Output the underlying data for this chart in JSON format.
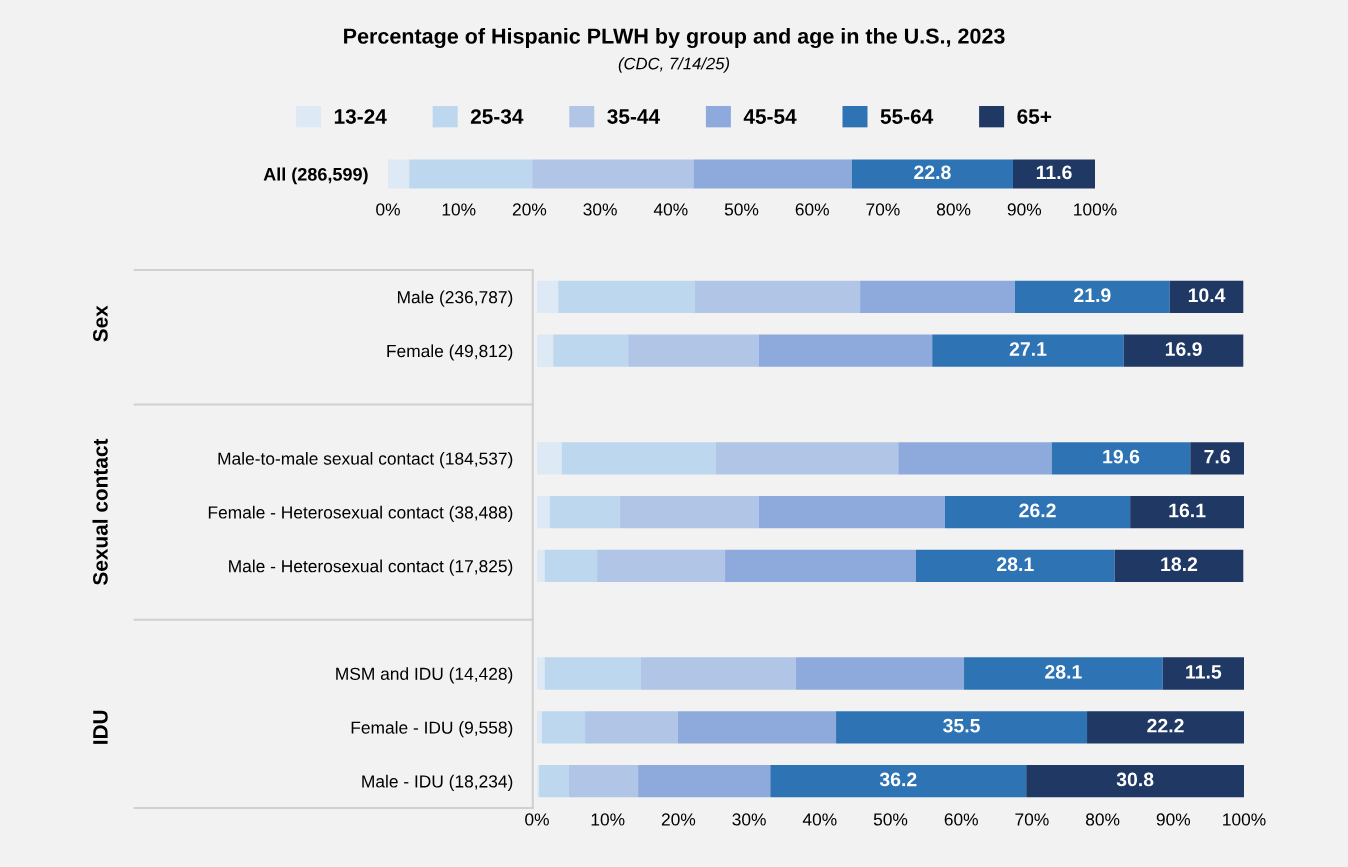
{
  "chart_data": [
    {
      "type": "bar",
      "orientation": "horizontal",
      "stacked": true,
      "title": "Percentage of Hispanic PLWH by group and age in the U.S., 2023",
      "subtitle": "(CDC, 7/14/25)",
      "legend": "top",
      "grid": false,
      "categories": [
        "All (286,599)"
      ],
      "xlim": [
        0,
        100
      ],
      "xticks": [
        {
          "value": 0,
          "label": "0%"
        },
        {
          "value": 10,
          "label": "10%"
        },
        {
          "value": 20,
          "label": "20%"
        },
        {
          "value": 30,
          "label": "30%"
        },
        {
          "value": 40,
          "label": "40%"
        },
        {
          "value": 50,
          "label": "50%"
        },
        {
          "value": 60,
          "label": "60%"
        },
        {
          "value": 70,
          "label": "70%"
        },
        {
          "value": 80,
          "label": "80%"
        },
        {
          "value": 90,
          "label": "90%"
        },
        {
          "value": 100,
          "label": "100%"
        }
      ],
      "series": [
        {
          "name": "13-24",
          "color": "#dde9f5",
          "values": [
            3.0
          ]
        },
        {
          "name": "25-34",
          "color": "#bcd7ee",
          "values": [
            17.4
          ]
        },
        {
          "name": "35-44",
          "color": "#b1c5e6",
          "values": [
            22.8
          ]
        },
        {
          "name": "45-54",
          "color": "#8eaadc",
          "values": [
            22.4
          ]
        },
        {
          "name": "55-64",
          "color": "#2e74b5",
          "values": [
            22.8
          ],
          "value_labels": [
            "22.8"
          ]
        },
        {
          "name": "65+",
          "color": "#1f3864",
          "values": [
            11.6
          ],
          "value_labels": [
            "11.6"
          ]
        }
      ]
    },
    {
      "type": "bar",
      "orientation": "horizontal",
      "stacked": true,
      "grid": false,
      "categories": [
        "Male (236,787)",
        "Female (49,812)",
        null,
        "Male-to-male sexual contact (184,537)",
        "Female - Heterosexual contact (38,488)",
        "Male - Heterosexual contact (17,825)",
        null,
        "MSM and IDU (14,428)",
        "Female - IDU (9,558)",
        "Male - IDU (18,234)"
      ],
      "annotations": [
        "Sex",
        "Sexual contact",
        "IDU"
      ],
      "xlim": [
        0,
        100
      ],
      "xticks": [
        {
          "value": 0,
          "label": "0%"
        },
        {
          "value": 10,
          "label": "10%"
        },
        {
          "value": 20,
          "label": "20%"
        },
        {
          "value": 30,
          "label": "30%"
        },
        {
          "value": 40,
          "label": "40%"
        },
        {
          "value": 50,
          "label": "50%"
        },
        {
          "value": 60,
          "label": "60%"
        },
        {
          "value": 70,
          "label": "70%"
        },
        {
          "value": 80,
          "label": "80%"
        },
        {
          "value": 90,
          "label": "90%"
        },
        {
          "value": 100,
          "label": "100%"
        }
      ],
      "series": [
        {
          "color": "#dde9f5",
          "values": [
            3.0,
            2.3,
            null,
            3.5,
            1.8,
            1.1,
            null,
            1.1,
            0.7,
            0.3
          ]
        },
        {
          "color": "#bcd7ee",
          "values": [
            19.3,
            10.6,
            null,
            21.8,
            9.9,
            7.4,
            null,
            13.6,
            6.1,
            4.2
          ]
        },
        {
          "color": "#b1c5e6",
          "values": [
            23.4,
            18.5,
            null,
            25.8,
            19.7,
            18.1,
            null,
            21.9,
            13.1,
            9.8
          ]
        },
        {
          "color": "#8eaadc",
          "values": [
            21.9,
            24.5,
            null,
            21.7,
            26.3,
            27.0,
            null,
            23.8,
            22.4,
            18.7
          ]
        },
        {
          "color": "#2e74b5",
          "values": [
            21.9,
            27.1,
            null,
            19.6,
            26.2,
            28.1,
            null,
            28.1,
            35.5,
            36.2
          ],
          "value_labels": [
            "21.9",
            "27.1",
            null,
            "19.6",
            "26.2",
            "28.1",
            null,
            "28.1",
            "35.5",
            "36.2"
          ]
        },
        {
          "color": "#1f3864",
          "values": [
            10.4,
            16.9,
            null,
            7.6,
            16.1,
            18.2,
            null,
            11.5,
            22.2,
            30.8
          ],
          "value_labels": [
            "10.4",
            "16.9",
            null,
            "7.6",
            "16.1",
            "18.2",
            null,
            "11.5",
            "22.2",
            "30.8"
          ]
        }
      ]
    }
  ]
}
